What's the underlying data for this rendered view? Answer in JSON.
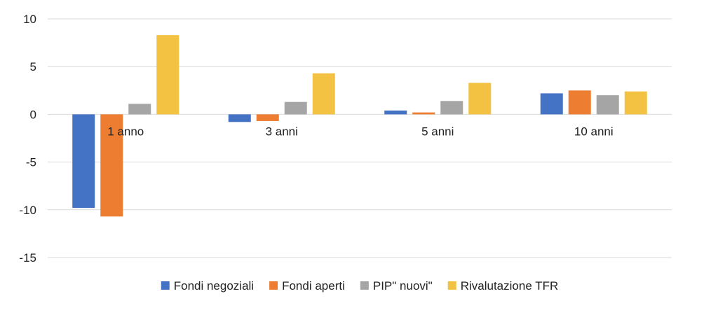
{
  "chart_data": {
    "type": "bar",
    "title": "",
    "xlabel": "",
    "ylabel": "",
    "categories": [
      "1 anno",
      "3 anni",
      "5 anni",
      "10 anni"
    ],
    "ylim": [
      -15,
      10
    ],
    "yticks": [
      10,
      5,
      0,
      -5,
      -10,
      -15
    ],
    "yticks_labels": [
      "10",
      "5",
      "0",
      "-5",
      "-10",
      "-15"
    ],
    "grid": true,
    "legend_position": "bottom",
    "series": [
      {
        "name": "Fondi negoziali",
        "color": "#4472C4",
        "values": [
          -9.8,
          -0.8,
          0.4,
          2.2
        ]
      },
      {
        "name": "Fondi aperti",
        "color": "#ED7D31",
        "values": [
          -10.7,
          -0.7,
          0.2,
          2.5
        ]
      },
      {
        "name": "PIP\" nuovi\"",
        "color": "#A5A5A5",
        "values": [
          1.1,
          1.3,
          1.4,
          2.0
        ]
      },
      {
        "name": "Rivalutazione TFR",
        "color": "#F4C242",
        "values": [
          8.3,
          4.3,
          3.3,
          2.4
        ]
      }
    ]
  }
}
